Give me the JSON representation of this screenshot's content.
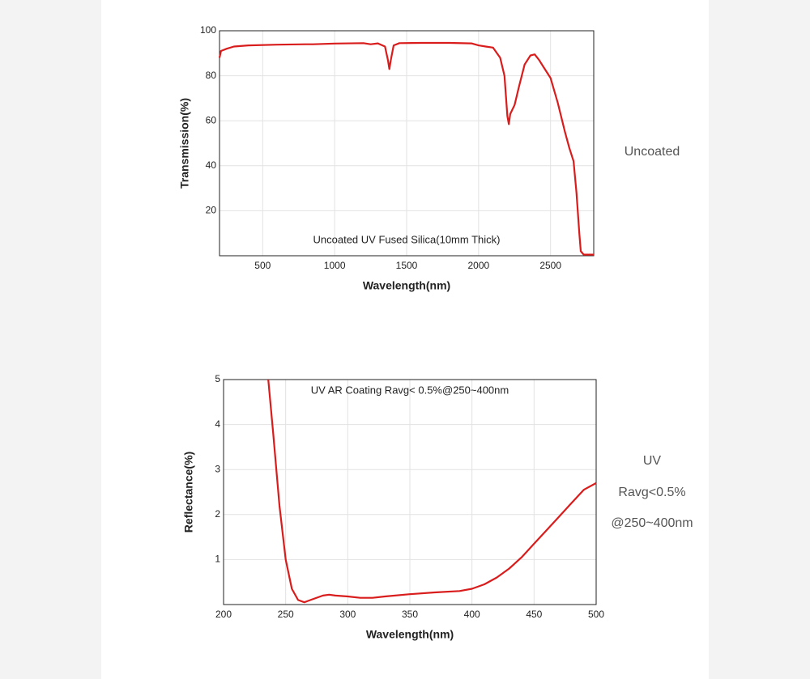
{
  "chart_data": [
    {
      "type": "line",
      "title": "Uncoated UV Fused Silica(10mm Thick)",
      "x_label": "Wavelength(nm)",
      "y_label": "Transmission(%)",
      "side_labels": [
        "Uncoated"
      ],
      "x": [
        200,
        210,
        250,
        300,
        400,
        600,
        800,
        850,
        1000,
        1200,
        1250,
        1300,
        1350,
        1370,
        1380,
        1390,
        1410,
        1450,
        1600,
        1800,
        1950,
        2000,
        2050,
        2100,
        2150,
        2180,
        2200,
        2210,
        2220,
        2250,
        2280,
        2320,
        2360,
        2390,
        2420,
        2450,
        2500,
        2550,
        2600,
        2630,
        2660,
        2680,
        2700,
        2710,
        2730,
        2800
      ],
      "series": [
        {
          "color": "#d91c1c",
          "values": [
            88,
            91,
            92,
            93,
            93.5,
            93.8,
            94,
            94,
            94.3,
            94.5,
            94,
            94.4,
            93,
            87,
            83,
            87,
            93.5,
            94.5,
            94.6,
            94.6,
            94.4,
            93.5,
            93,
            92.5,
            88,
            80,
            62,
            58.5,
            63,
            67,
            75,
            85,
            89,
            89.5,
            87,
            84,
            79,
            68,
            55,
            48,
            42,
            28,
            10,
            2,
            0.5,
            0.5
          ]
        }
      ],
      "xlim": [
        200,
        2800
      ],
      "ylim": [
        0,
        100
      ],
      "xticks": [
        500,
        1000,
        1500,
        2000,
        2500
      ],
      "yticks": [
        20,
        40,
        60,
        80,
        100
      ],
      "grid": true
    },
    {
      "type": "line",
      "title": "UV AR Coating Ravg< 0.5%@250~400nm",
      "x_label": "Wavelength(nm)",
      "y_label": "Reflectance(%)",
      "side_labels": [
        "UV",
        "Ravg<0.5%",
        "@250~400nm"
      ],
      "x": [
        236,
        240,
        245,
        250,
        255,
        260,
        265,
        270,
        280,
        285,
        290,
        300,
        310,
        320,
        330,
        350,
        370,
        390,
        400,
        410,
        420,
        430,
        440,
        450,
        460,
        470,
        480,
        490,
        500
      ],
      "series": [
        {
          "color": "#d91c1c",
          "values": [
            5,
            3.8,
            2.2,
            1.0,
            0.35,
            0.1,
            0.05,
            0.1,
            0.2,
            0.22,
            0.2,
            0.18,
            0.15,
            0.15,
            0.18,
            0.23,
            0.27,
            0.3,
            0.35,
            0.45,
            0.6,
            0.8,
            1.05,
            1.35,
            1.65,
            1.95,
            2.25,
            2.55,
            2.7
          ]
        }
      ],
      "xlim": [
        200,
        500
      ],
      "ylim": [
        0,
        5
      ],
      "xticks": [
        200,
        250,
        300,
        350,
        400,
        450,
        500
      ],
      "yticks": [
        1,
        2,
        3,
        4,
        5
      ],
      "grid": true
    }
  ]
}
